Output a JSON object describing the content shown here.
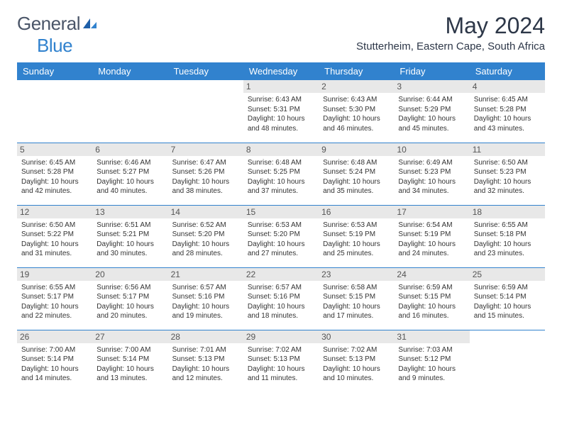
{
  "logo": {
    "text_general": "General",
    "text_blue": "Blue"
  },
  "title": "May 2024",
  "location": "Stutterheim, Eastern Cape, South Africa",
  "colors": {
    "header_bg": "#3182ce",
    "header_text": "#ffffff",
    "daynum_bg": "#e8e8e8",
    "row_border": "#3182ce"
  },
  "weekdays": [
    "Sunday",
    "Monday",
    "Tuesday",
    "Wednesday",
    "Thursday",
    "Friday",
    "Saturday"
  ],
  "weeks": [
    [
      {
        "day": "",
        "sunrise": "",
        "sunset": "",
        "daylight": ""
      },
      {
        "day": "",
        "sunrise": "",
        "sunset": "",
        "daylight": ""
      },
      {
        "day": "",
        "sunrise": "",
        "sunset": "",
        "daylight": ""
      },
      {
        "day": "1",
        "sunrise": "Sunrise: 6:43 AM",
        "sunset": "Sunset: 5:31 PM",
        "daylight": "Daylight: 10 hours and 48 minutes."
      },
      {
        "day": "2",
        "sunrise": "Sunrise: 6:43 AM",
        "sunset": "Sunset: 5:30 PM",
        "daylight": "Daylight: 10 hours and 46 minutes."
      },
      {
        "day": "3",
        "sunrise": "Sunrise: 6:44 AM",
        "sunset": "Sunset: 5:29 PM",
        "daylight": "Daylight: 10 hours and 45 minutes."
      },
      {
        "day": "4",
        "sunrise": "Sunrise: 6:45 AM",
        "sunset": "Sunset: 5:28 PM",
        "daylight": "Daylight: 10 hours and 43 minutes."
      }
    ],
    [
      {
        "day": "5",
        "sunrise": "Sunrise: 6:45 AM",
        "sunset": "Sunset: 5:28 PM",
        "daylight": "Daylight: 10 hours and 42 minutes."
      },
      {
        "day": "6",
        "sunrise": "Sunrise: 6:46 AM",
        "sunset": "Sunset: 5:27 PM",
        "daylight": "Daylight: 10 hours and 40 minutes."
      },
      {
        "day": "7",
        "sunrise": "Sunrise: 6:47 AM",
        "sunset": "Sunset: 5:26 PM",
        "daylight": "Daylight: 10 hours and 38 minutes."
      },
      {
        "day": "8",
        "sunrise": "Sunrise: 6:48 AM",
        "sunset": "Sunset: 5:25 PM",
        "daylight": "Daylight: 10 hours and 37 minutes."
      },
      {
        "day": "9",
        "sunrise": "Sunrise: 6:48 AM",
        "sunset": "Sunset: 5:24 PM",
        "daylight": "Daylight: 10 hours and 35 minutes."
      },
      {
        "day": "10",
        "sunrise": "Sunrise: 6:49 AM",
        "sunset": "Sunset: 5:23 PM",
        "daylight": "Daylight: 10 hours and 34 minutes."
      },
      {
        "day": "11",
        "sunrise": "Sunrise: 6:50 AM",
        "sunset": "Sunset: 5:23 PM",
        "daylight": "Daylight: 10 hours and 32 minutes."
      }
    ],
    [
      {
        "day": "12",
        "sunrise": "Sunrise: 6:50 AM",
        "sunset": "Sunset: 5:22 PM",
        "daylight": "Daylight: 10 hours and 31 minutes."
      },
      {
        "day": "13",
        "sunrise": "Sunrise: 6:51 AM",
        "sunset": "Sunset: 5:21 PM",
        "daylight": "Daylight: 10 hours and 30 minutes."
      },
      {
        "day": "14",
        "sunrise": "Sunrise: 6:52 AM",
        "sunset": "Sunset: 5:20 PM",
        "daylight": "Daylight: 10 hours and 28 minutes."
      },
      {
        "day": "15",
        "sunrise": "Sunrise: 6:53 AM",
        "sunset": "Sunset: 5:20 PM",
        "daylight": "Daylight: 10 hours and 27 minutes."
      },
      {
        "day": "16",
        "sunrise": "Sunrise: 6:53 AM",
        "sunset": "Sunset: 5:19 PM",
        "daylight": "Daylight: 10 hours and 25 minutes."
      },
      {
        "day": "17",
        "sunrise": "Sunrise: 6:54 AM",
        "sunset": "Sunset: 5:19 PM",
        "daylight": "Daylight: 10 hours and 24 minutes."
      },
      {
        "day": "18",
        "sunrise": "Sunrise: 6:55 AM",
        "sunset": "Sunset: 5:18 PM",
        "daylight": "Daylight: 10 hours and 23 minutes."
      }
    ],
    [
      {
        "day": "19",
        "sunrise": "Sunrise: 6:55 AM",
        "sunset": "Sunset: 5:17 PM",
        "daylight": "Daylight: 10 hours and 22 minutes."
      },
      {
        "day": "20",
        "sunrise": "Sunrise: 6:56 AM",
        "sunset": "Sunset: 5:17 PM",
        "daylight": "Daylight: 10 hours and 20 minutes."
      },
      {
        "day": "21",
        "sunrise": "Sunrise: 6:57 AM",
        "sunset": "Sunset: 5:16 PM",
        "daylight": "Daylight: 10 hours and 19 minutes."
      },
      {
        "day": "22",
        "sunrise": "Sunrise: 6:57 AM",
        "sunset": "Sunset: 5:16 PM",
        "daylight": "Daylight: 10 hours and 18 minutes."
      },
      {
        "day": "23",
        "sunrise": "Sunrise: 6:58 AM",
        "sunset": "Sunset: 5:15 PM",
        "daylight": "Daylight: 10 hours and 17 minutes."
      },
      {
        "day": "24",
        "sunrise": "Sunrise: 6:59 AM",
        "sunset": "Sunset: 5:15 PM",
        "daylight": "Daylight: 10 hours and 16 minutes."
      },
      {
        "day": "25",
        "sunrise": "Sunrise: 6:59 AM",
        "sunset": "Sunset: 5:14 PM",
        "daylight": "Daylight: 10 hours and 15 minutes."
      }
    ],
    [
      {
        "day": "26",
        "sunrise": "Sunrise: 7:00 AM",
        "sunset": "Sunset: 5:14 PM",
        "daylight": "Daylight: 10 hours and 14 minutes."
      },
      {
        "day": "27",
        "sunrise": "Sunrise: 7:00 AM",
        "sunset": "Sunset: 5:14 PM",
        "daylight": "Daylight: 10 hours and 13 minutes."
      },
      {
        "day": "28",
        "sunrise": "Sunrise: 7:01 AM",
        "sunset": "Sunset: 5:13 PM",
        "daylight": "Daylight: 10 hours and 12 minutes."
      },
      {
        "day": "29",
        "sunrise": "Sunrise: 7:02 AM",
        "sunset": "Sunset: 5:13 PM",
        "daylight": "Daylight: 10 hours and 11 minutes."
      },
      {
        "day": "30",
        "sunrise": "Sunrise: 7:02 AM",
        "sunset": "Sunset: 5:13 PM",
        "daylight": "Daylight: 10 hours and 10 minutes."
      },
      {
        "day": "31",
        "sunrise": "Sunrise: 7:03 AM",
        "sunset": "Sunset: 5:12 PM",
        "daylight": "Daylight: 10 hours and 9 minutes."
      },
      {
        "day": "",
        "sunrise": "",
        "sunset": "",
        "daylight": ""
      }
    ]
  ]
}
